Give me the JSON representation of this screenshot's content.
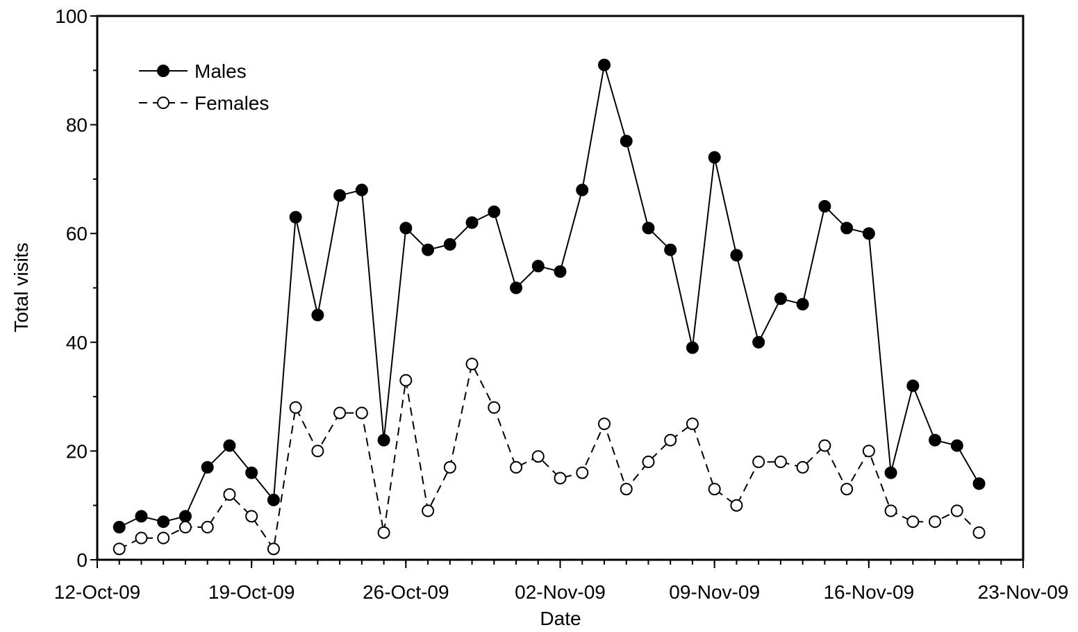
{
  "chart_data": {
    "type": "line",
    "xlabel": "Date",
    "ylabel": "Total visits",
    "ylim": [
      0,
      100
    ],
    "yticks": [
      0,
      20,
      40,
      60,
      80,
      100
    ],
    "xlim": [
      "12-Oct-09",
      "23-Nov-09"
    ],
    "xtick_labels": [
      "12-Oct-09",
      "19-Oct-09",
      "26-Oct-09",
      "02-Nov-09",
      "09-Nov-09",
      "16-Nov-09",
      "23-Nov-09"
    ],
    "grid": false,
    "legend": "top-left",
    "x": [
      "13-Oct-09",
      "14-Oct-09",
      "15-Oct-09",
      "16-Oct-09",
      "17-Oct-09",
      "18-Oct-09",
      "19-Oct-09",
      "20-Oct-09",
      "21-Oct-09",
      "22-Oct-09",
      "23-Oct-09",
      "24-Oct-09",
      "25-Oct-09",
      "26-Oct-09",
      "27-Oct-09",
      "28-Oct-09",
      "29-Oct-09",
      "30-Oct-09",
      "31-Oct-09",
      "01-Nov-09",
      "02-Nov-09",
      "03-Nov-09",
      "04-Nov-09",
      "05-Nov-09",
      "06-Nov-09",
      "07-Nov-09",
      "08-Nov-09",
      "09-Nov-09",
      "10-Nov-09",
      "11-Nov-09",
      "12-Nov-09",
      "13-Nov-09",
      "14-Nov-09",
      "15-Nov-09",
      "16-Nov-09",
      "17-Nov-09",
      "18-Nov-09",
      "19-Nov-09",
      "20-Nov-09",
      "21-Nov-09"
    ],
    "series": [
      {
        "name": "Males",
        "marker": "filled-circle",
        "line": "solid",
        "values": [
          6,
          8,
          7,
          8,
          17,
          21,
          16,
          11,
          63,
          45,
          67,
          68,
          22,
          61,
          57,
          58,
          62,
          64,
          50,
          54,
          53,
          68,
          91,
          77,
          61,
          57,
          39,
          74,
          56,
          40,
          48,
          47,
          65,
          61,
          60,
          16,
          32,
          22,
          21,
          14
        ]
      },
      {
        "name": "Females",
        "marker": "open-circle",
        "line": "dashed",
        "values": [
          2,
          4,
          4,
          6,
          6,
          12,
          8,
          2,
          28,
          20,
          27,
          27,
          5,
          33,
          9,
          17,
          36,
          28,
          17,
          19,
          15,
          16,
          25,
          13,
          18,
          22,
          25,
          13,
          10,
          18,
          18,
          17,
          21,
          13,
          20,
          9,
          7,
          7,
          9,
          5
        ]
      }
    ]
  }
}
